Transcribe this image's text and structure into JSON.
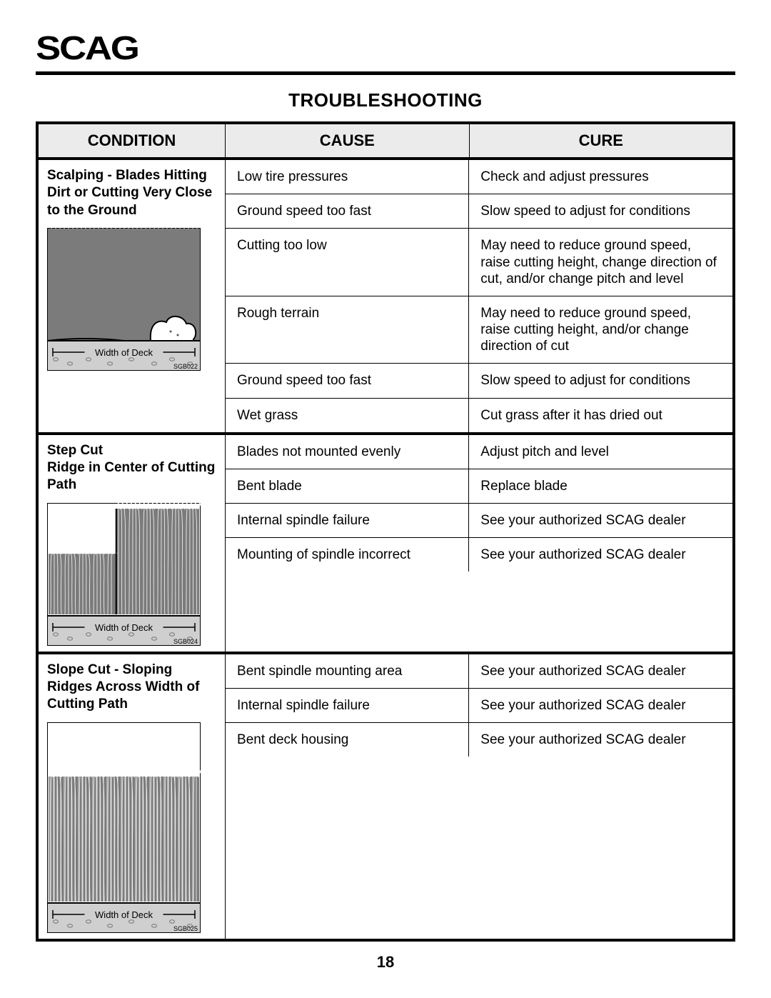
{
  "header": {
    "logo": "SCAG"
  },
  "page": {
    "title": "TROUBLESHOOTING",
    "number": "18"
  },
  "columns": {
    "condition": "CONDITION",
    "cause": "CAUSE",
    "cure": "CURE"
  },
  "diagram": {
    "width_label": "Width of Deck",
    "codes": [
      "SGB022",
      "SGB024",
      "SGB025"
    ]
  },
  "sections": [
    {
      "condition": "Scalping - Blades Hitting Dirt or Cutting Very Close to the Ground",
      "diagram_code_index": 0,
      "diagram_kind": "scalping",
      "rows": [
        {
          "cause": "Low tire pressures",
          "cure": "Check and adjust pressures"
        },
        {
          "cause": "Ground speed too fast",
          "cure": "Slow speed to adjust for conditions"
        },
        {
          "cause": "Cutting too low",
          "cure": "May need to reduce ground speed, raise cutting height, change direction of cut, and/or change pitch and level"
        },
        {
          "cause": "Rough terrain",
          "cure": "May need to reduce ground speed, raise cutting height, and/or change direction of cut"
        },
        {
          "cause": "Ground speed too fast",
          "cure": "Slow speed to adjust for conditions"
        },
        {
          "cause": "Wet grass",
          "cure": "Cut grass after it has dried out"
        }
      ]
    },
    {
      "condition": "Step Cut\nRidge in Center of Cutting Path",
      "diagram_code_index": 1,
      "diagram_kind": "stepcut",
      "rows": [
        {
          "cause": "Blades not mounted evenly",
          "cure": "Adjust pitch and level"
        },
        {
          "cause": "Bent blade",
          "cure": "Replace blade"
        },
        {
          "cause": "Internal spindle failure",
          "cure": "See your authorized SCAG dealer"
        },
        {
          "cause": "Mounting of spindle incorrect",
          "cure": "See your authorized SCAG dealer"
        }
      ]
    },
    {
      "condition": "Slope Cut - Sloping Ridges Across Width of Cutting Path",
      "diagram_code_index": 2,
      "diagram_kind": "slopecut",
      "rows": [
        {
          "cause": "Bent spindle mounting area",
          "cure": "See your authorized SCAG dealer"
        },
        {
          "cause": "Internal spindle failure",
          "cure": "See your authorized SCAG dealer"
        },
        {
          "cause": "Bent deck housing",
          "cure": "See your authorized SCAG dealer"
        }
      ]
    }
  ],
  "diagram_heights": [
    200,
    200,
    295
  ],
  "colors": {
    "grass": "#7b7b7b",
    "dirt": "#cfcfcf",
    "border": "#000000",
    "bg": "#ffffff",
    "header_bg": "#ebebeb"
  }
}
